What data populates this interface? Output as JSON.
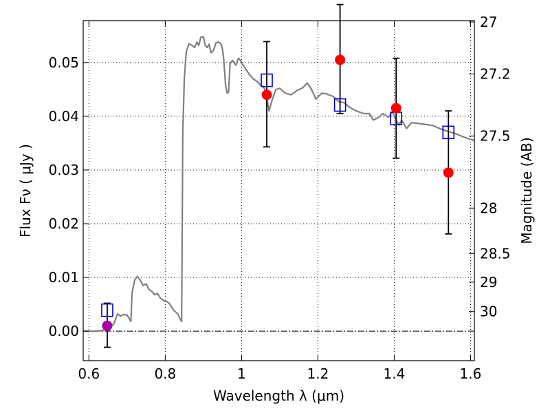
{
  "chart_data": {
    "type": "scatter",
    "xlabel": "Wavelength  λ (μm)",
    "ylabel": "Flux  Fν ( μJy )",
    "y2label": "Magnitude (AB)",
    "xlim": [
      0.585,
      1.61
    ],
    "ylim": [
      -0.0055,
      0.0578
    ],
    "grid": true,
    "x_ticks": [
      0.6,
      0.8,
      1.0,
      1.2,
      1.4,
      1.6
    ],
    "x_tick_labels": [
      "0.6",
      "0.8",
      "1",
      "1.2",
      "1.4",
      "1.6"
    ],
    "y_ticks": [
      0.0,
      0.01,
      0.02,
      0.03,
      0.04,
      0.05
    ],
    "y_tick_labels": [
      "0.00",
      "0.01",
      "0.02",
      "0.03",
      "0.04",
      "0.05"
    ],
    "mag_ticks": [
      27,
      27.2,
      27.5,
      28,
      28.5,
      29,
      30
    ],
    "mag_tick_labels": [
      "27",
      "27.2",
      "27.5",
      "28",
      "28.5",
      "29",
      "30"
    ],
    "zero_line": 0.0,
    "colors": {
      "model": "#808080",
      "observed": "#ff0000",
      "upper_limit": "#aa00aa",
      "model_band": "#0000cc",
      "errorbar": "#000000"
    },
    "model_spectrum": {
      "x": [
        0.585,
        0.6,
        0.62,
        0.64,
        0.655,
        0.665,
        0.675,
        0.683,
        0.69,
        0.7,
        0.71,
        0.713,
        0.72,
        0.727,
        0.735,
        0.742,
        0.75,
        0.757,
        0.765,
        0.772,
        0.78,
        0.787,
        0.795,
        0.802,
        0.81,
        0.815,
        0.82,
        0.825,
        0.833,
        0.84,
        0.843,
        0.846,
        0.85,
        0.855,
        0.862,
        0.87,
        0.877,
        0.883,
        0.888,
        0.893,
        0.9,
        0.905,
        0.91,
        0.915,
        0.92,
        0.926,
        0.933,
        0.94,
        0.946,
        0.95,
        0.953,
        0.958,
        0.962,
        0.966,
        0.97,
        0.976,
        0.985,
        0.992,
        0.998,
        1.004,
        1.012,
        1.02,
        1.03,
        1.04,
        1.05,
        1.06,
        1.066,
        1.072,
        1.08,
        1.09,
        1.1,
        1.115,
        1.13,
        1.145,
        1.16,
        1.172,
        1.183,
        1.195,
        1.21,
        1.22,
        1.24,
        1.255,
        1.27,
        1.28,
        1.3,
        1.32,
        1.335,
        1.345,
        1.36,
        1.37,
        1.385,
        1.395,
        1.405,
        1.412,
        1.42,
        1.432,
        1.445,
        1.46,
        1.48,
        1.5,
        1.52,
        1.54,
        1.56,
        1.58,
        1.6,
        1.61
      ],
      "y": [
        0.0,
        0.0,
        0.0,
        0.0002,
        0.0006,
        0.0013,
        0.0032,
        0.0028,
        0.0031,
        0.003,
        0.0018,
        0.0072,
        0.0095,
        0.0102,
        0.0094,
        0.0085,
        0.0088,
        0.0078,
        0.0074,
        0.0068,
        0.007,
        0.0062,
        0.0057,
        0.0056,
        0.0052,
        0.0047,
        0.0041,
        0.0037,
        0.0032,
        0.0021,
        0.0018,
        0.037,
        0.047,
        0.052,
        0.0535,
        0.0532,
        0.0528,
        0.0538,
        0.0532,
        0.0547,
        0.0548,
        0.0532,
        0.0528,
        0.0534,
        0.0518,
        0.0522,
        0.0537,
        0.0538,
        0.0535,
        0.0525,
        0.0508,
        0.0458,
        0.0443,
        0.0445,
        0.0498,
        0.0504,
        0.0495,
        0.0508,
        0.0503,
        0.0495,
        0.0487,
        0.0478,
        0.047,
        0.0465,
        0.0458,
        0.0452,
        0.0435,
        0.041,
        0.043,
        0.045,
        0.0452,
        0.0443,
        0.044,
        0.0448,
        0.0453,
        0.0462,
        0.045,
        0.0432,
        0.0443,
        0.0442,
        0.0437,
        0.0427,
        0.0425,
        0.0418,
        0.041,
        0.0405,
        0.0405,
        0.0393,
        0.0398,
        0.0405,
        0.0398,
        0.0408,
        0.0393,
        0.0384,
        0.0393,
        0.0377,
        0.0388,
        0.0387,
        0.0385,
        0.0383,
        0.0377,
        0.0372,
        0.0368,
        0.0362,
        0.0357,
        0.0355
      ]
    },
    "model_band_fluxes": [
      {
        "x": 0.648,
        "y": 0.0039
      },
      {
        "x": 1.066,
        "y": 0.0467
      },
      {
        "x": 1.258,
        "y": 0.0421
      },
      {
        "x": 1.405,
        "y": 0.0396
      },
      {
        "x": 1.542,
        "y": 0.037
      }
    ],
    "observed": [
      {
        "x": 1.066,
        "y": 0.044,
        "err_low": 0.0097,
        "err_high": 0.0099
      },
      {
        "x": 1.258,
        "y": 0.0505,
        "err_low": 0.01,
        "err_high": 0.0103
      },
      {
        "x": 1.405,
        "y": 0.0415,
        "err_low": 0.0093,
        "err_high": 0.0093
      },
      {
        "x": 1.542,
        "y": 0.0295,
        "err_low": 0.0114,
        "err_high": 0.0115
      }
    ],
    "upper_limits": [
      {
        "x": 0.648,
        "y": 0.001,
        "err_low": 0.004,
        "err_high": 0.0042
      }
    ]
  }
}
